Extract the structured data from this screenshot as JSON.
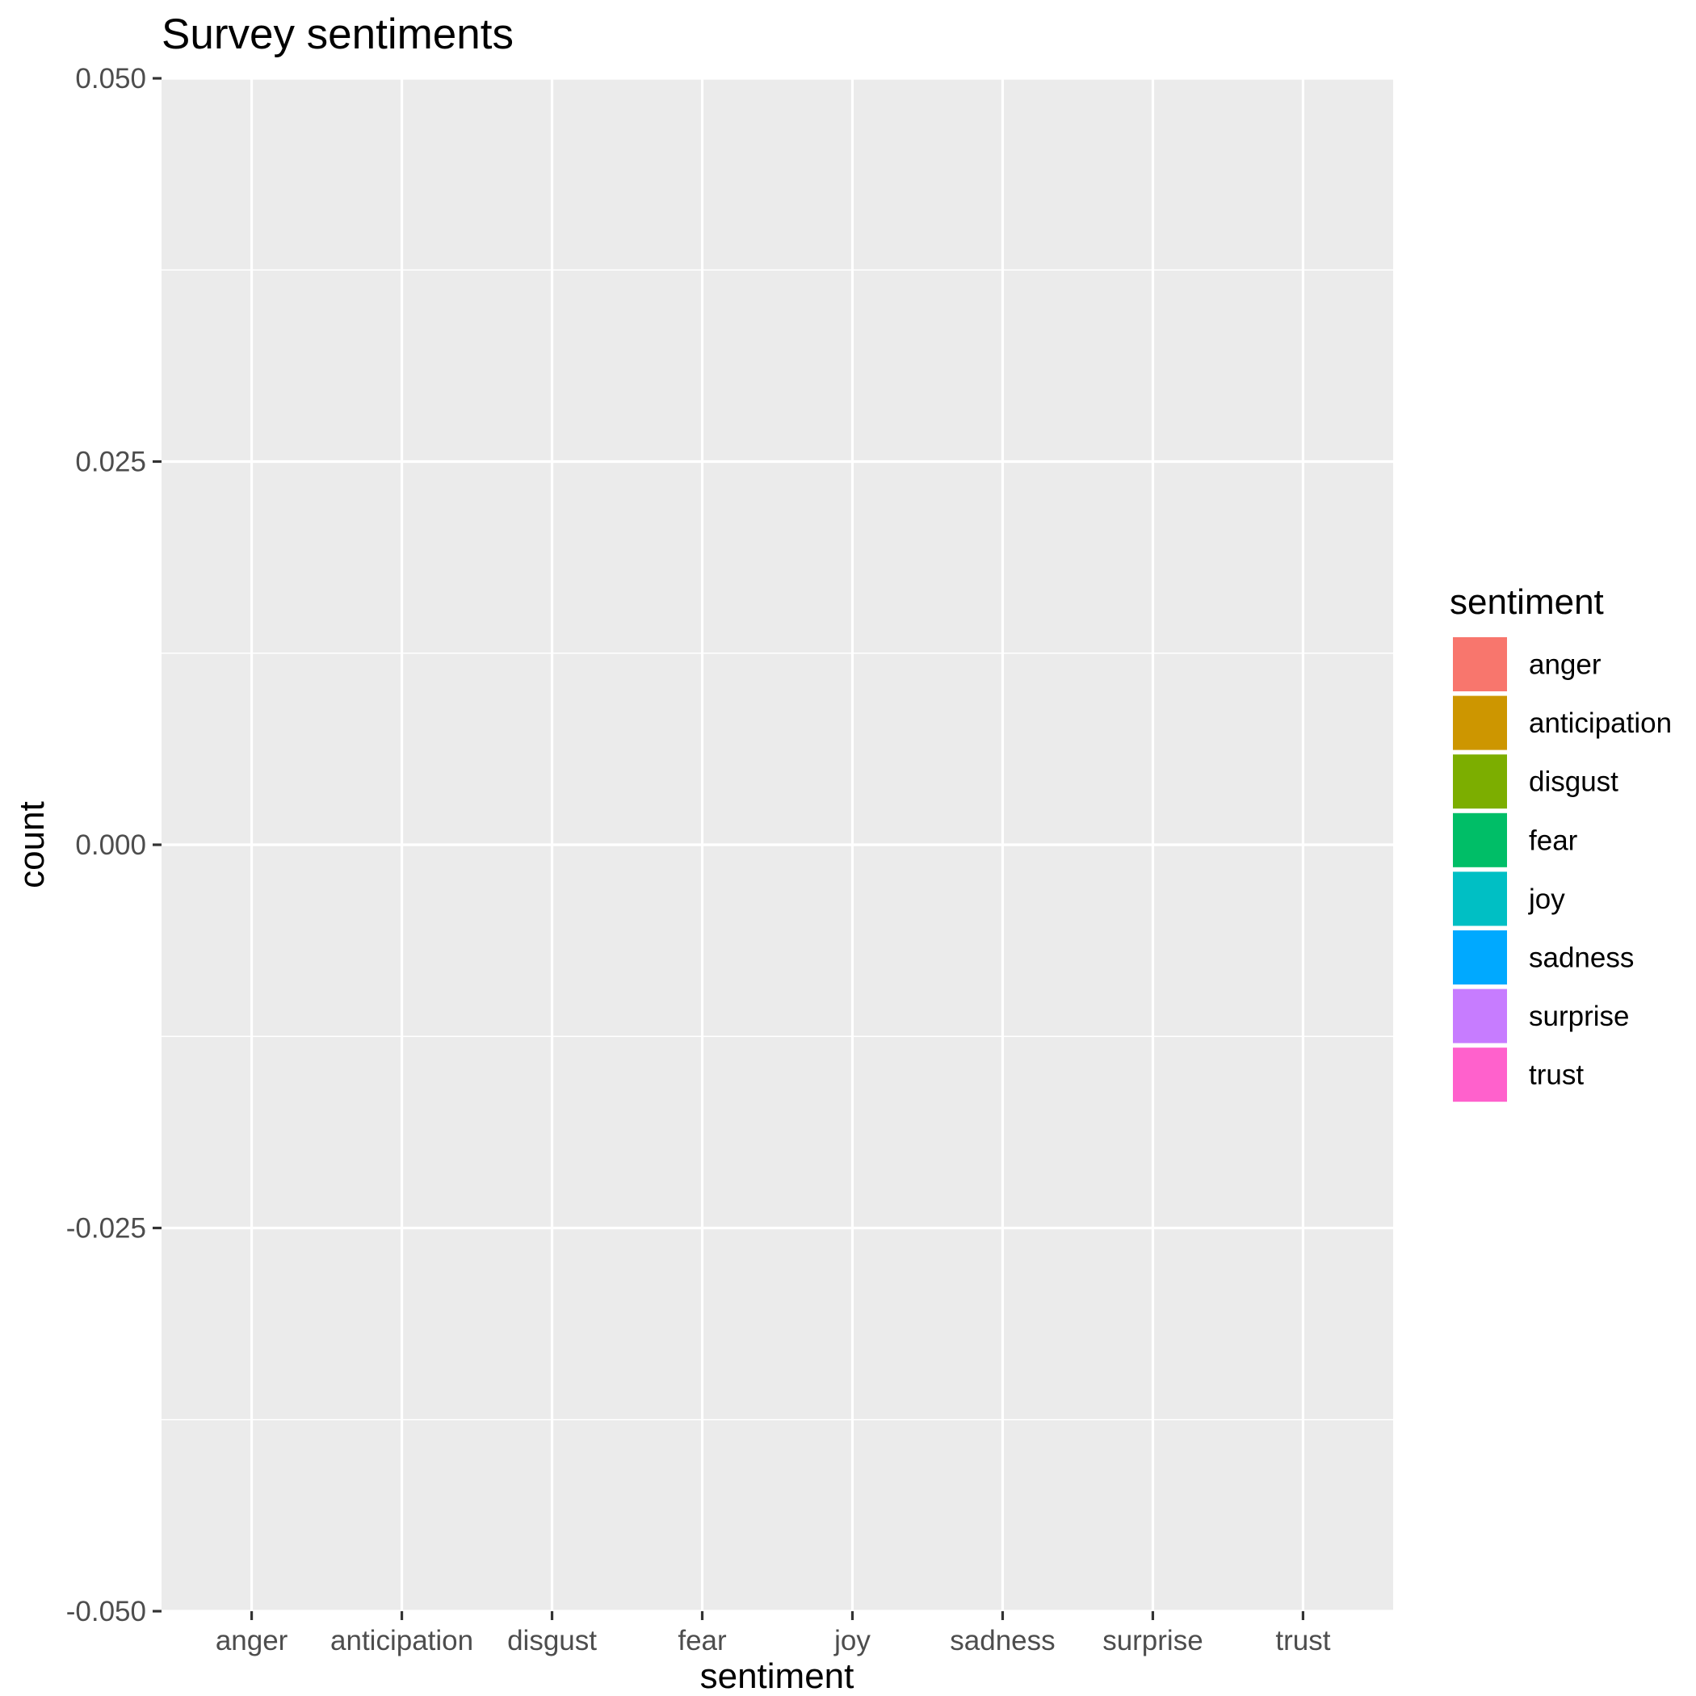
{
  "chart_data": {
    "type": "bar",
    "title": "Survey sentiments",
    "xlabel": "sentiment",
    "ylabel": "count",
    "categories": [
      "anger",
      "anticipation",
      "disgust",
      "fear",
      "joy",
      "sadness",
      "surprise",
      "trust"
    ],
    "values": [
      0,
      0,
      0,
      0,
      0,
      0,
      0,
      0
    ],
    "ylim": [
      -0.05,
      0.05
    ],
    "yticks": [
      "0.050",
      "0.025",
      "0.000",
      "-0.025",
      "-0.050"
    ],
    "ytick_values": [
      0.05,
      0.025,
      0,
      -0.025,
      -0.05
    ],
    "grid": true,
    "legend": {
      "title": "sentiment",
      "placement": "right",
      "items": [
        {
          "label": "anger",
          "color": "#F8766D"
        },
        {
          "label": "anticipation",
          "color": "#CD9600"
        },
        {
          "label": "disgust",
          "color": "#7CAE00"
        },
        {
          "label": "fear",
          "color": "#00BE67"
        },
        {
          "label": "joy",
          "color": "#00BFC4"
        },
        {
          "label": "sadness",
          "color": "#00A9FF"
        },
        {
          "label": "surprise",
          "color": "#C77CFF"
        },
        {
          "label": "trust",
          "color": "#FF61CC"
        }
      ]
    }
  }
}
